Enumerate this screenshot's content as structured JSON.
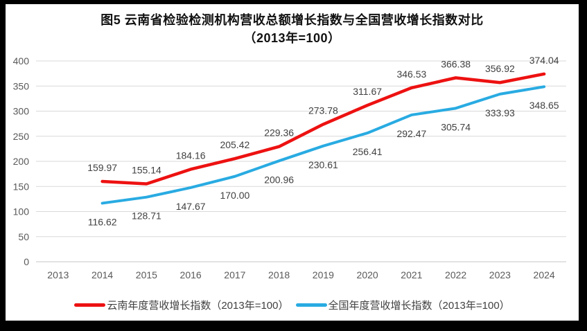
{
  "title": {
    "line1": "图5  云南省检验检测机构营收总额增长指数与全国营收增长指数对比",
    "line2": "（2013年=100）"
  },
  "chart_data": {
    "type": "line",
    "categories": [
      "2013",
      "2014",
      "2015",
      "2016",
      "2017",
      "2018",
      "2019",
      "2020",
      "2021",
      "2022",
      "2023",
      "2024"
    ],
    "series": [
      {
        "name": "云南年度营收增长指数（2013年=100）",
        "color": "#ED1111",
        "stroke_width": 4.5,
        "label_offset": -20,
        "values": [
          null,
          159.97,
          155.14,
          184.16,
          205.42,
          229.36,
          273.78,
          311.67,
          346.53,
          366.38,
          356.92,
          374.04
        ]
      },
      {
        "name": "全国年度营收增长指数（2013年=100）",
        "color": "#29ABE2",
        "stroke_width": 4,
        "label_offset": 27,
        "values": [
          null,
          116.62,
          128.71,
          147.67,
          170.0,
          200.96,
          230.61,
          256.41,
          292.47,
          305.74,
          333.93,
          348.65
        ]
      }
    ],
    "yticks": [
      0,
      50,
      100,
      150,
      200,
      250,
      300,
      350,
      400
    ],
    "ylim": [
      0,
      400
    ],
    "grid": true,
    "data_labels": true,
    "data_label_decimals": 2,
    "legend_position": "bottom",
    "colors": {
      "gridline": "#D9D9D9",
      "axis_line": "#C6C6C6",
      "tick_label": "#595959",
      "data_label": "#404040"
    }
  }
}
